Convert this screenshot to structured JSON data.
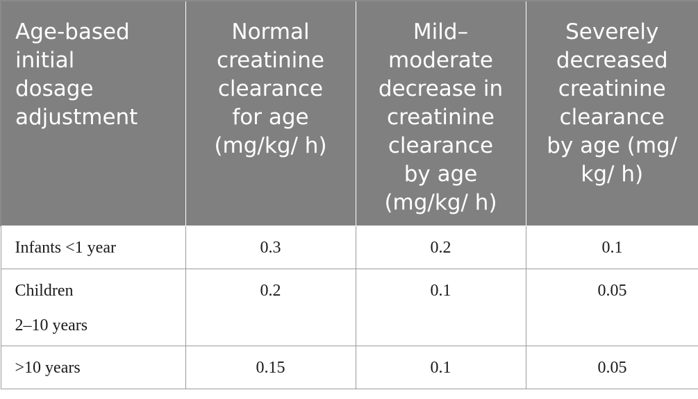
{
  "table": {
    "headers": [
      "Age-based\ninitial\ndosage\nadjustment",
      "Normal\ncreatinine\nclearance\nfor age\n(mg/kg/ h)",
      "Mild–\nmoderate\ndecrease in\ncreatinine\nclearance\nby age\n(mg/kg/ h)",
      "Severely\ndecreased\ncreatinine\nclearance\nby age (mg/\nkg/ h)"
    ],
    "rows": [
      [
        "Infants <1 year",
        "0.3",
        "0.2",
        "0.1"
      ],
      [
        "Children\n2–10 years",
        "0.2",
        "0.1",
        "0.05"
      ],
      [
        ">10 years",
        "0.15",
        "0.1",
        "0.05"
      ]
    ]
  }
}
